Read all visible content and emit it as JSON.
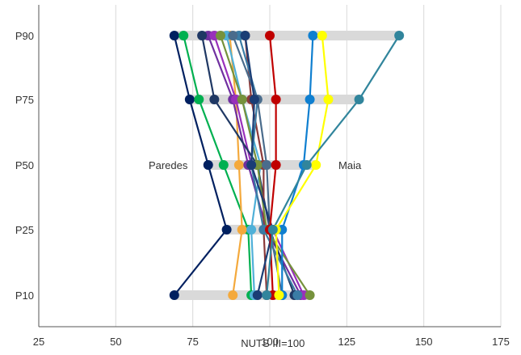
{
  "chart_data": {
    "type": "line",
    "title": "",
    "xlabel": "NUTS III=100",
    "ylabel": "",
    "xlim": [
      25,
      175
    ],
    "x_ticks": [
      "25",
      "50",
      "75",
      "100",
      "125",
      "150",
      "175"
    ],
    "categories": [
      "P10",
      "P25",
      "P50",
      "P75",
      "P90"
    ],
    "grid": "vertical",
    "annotations": [
      {
        "text": "Paredes",
        "x": 67,
        "category": "P50"
      },
      {
        "text": "Maia",
        "x": 126,
        "category": "P50"
      }
    ],
    "ranges": [
      {
        "category": "P10",
        "min": 69,
        "max": 113
      },
      {
        "category": "P25",
        "min": 86,
        "max": 104
      },
      {
        "category": "P50",
        "min": 80,
        "max": 115
      },
      {
        "category": "P75",
        "min": 74,
        "max": 129
      },
      {
        "category": "P90",
        "min": 69,
        "max": 142
      }
    ],
    "series": [
      {
        "color": "#002060",
        "values": [
          69,
          86,
          80,
          74,
          69
        ]
      },
      {
        "color": "#00b050",
        "values": [
          94,
          93,
          85,
          77,
          72
        ]
      },
      {
        "color": "#f4a93c",
        "values": [
          88,
          91,
          90,
          89,
          87
        ]
      },
      {
        "color": "#4fb0d8",
        "values": [
          95,
          94,
          97,
          91,
          86
        ]
      },
      {
        "color": "#7030a0",
        "values": [
          110,
          99,
          93,
          88,
          80
        ]
      },
      {
        "color": "#9930bb",
        "values": [
          111,
          101,
          94,
          89,
          82
        ]
      },
      {
        "color": "#1f3864",
        "values": [
          108,
          100,
          96,
          82,
          78
        ]
      },
      {
        "color": "#8b3a3a",
        "values": [
          99,
          98,
          98,
          94,
          92
        ]
      },
      {
        "color": "#76923c",
        "values": [
          113,
          99,
          96,
          91,
          84
        ]
      },
      {
        "color": "#3a7ca5",
        "values": [
          109,
          98,
          94,
          96,
          90
        ]
      },
      {
        "color": "#4a6c8c",
        "values": [
          104,
          100,
          99,
          96,
          88
        ]
      },
      {
        "color": "#1a3d75",
        "values": [
          96,
          101,
          94,
          95,
          92
        ]
      },
      {
        "color": "#c00000",
        "values": [
          101,
          100,
          102,
          102,
          100
        ]
      },
      {
        "color": "#0f7fd0",
        "values": [
          104,
          104,
          111,
          113,
          114
        ]
      },
      {
        "color": "#ffff00",
        "values": [
          103,
          102,
          115,
          119,
          117
        ]
      },
      {
        "color": "#31859c",
        "values": [
          99,
          101,
          112,
          129,
          142
        ]
      }
    ]
  }
}
